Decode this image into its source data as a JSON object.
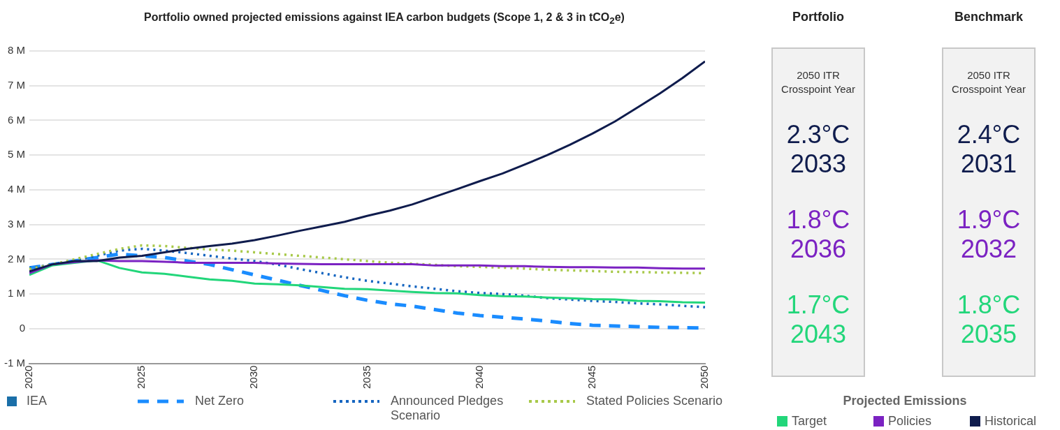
{
  "chart_data": [
    {
      "type": "line",
      "title": "Portfolio owned projected emissions against IEA carbon budgets (Scope 1, 2 & 3 in tCO$_{2}$e)",
      "legend_title": "IEA",
      "annotations": [
        "Projected Emissions"
      ],
      "x": [
        2020,
        2021,
        2022,
        2023,
        2024,
        2025,
        2026,
        2027,
        2028,
        2029,
        2030,
        2031,
        2032,
        2033,
        2034,
        2035,
        2036,
        2037,
        2038,
        2039,
        2040,
        2041,
        2042,
        2043,
        2044,
        2045,
        2046,
        2047,
        2048,
        2049,
        2050
      ],
      "xlim": [
        2020,
        2050
      ],
      "xticks": [
        2020,
        2025,
        2030,
        2035,
        2040,
        2045,
        2050
      ],
      "ylim": [
        -1,
        8
      ],
      "yticks": [
        {
          "value": -1,
          "label": "-1 M"
        },
        {
          "value": 0,
          "label": "0"
        },
        {
          "value": 1,
          "label": "1 M"
        },
        {
          "value": 2,
          "label": "2 M"
        },
        {
          "value": 3,
          "label": "3 M"
        },
        {
          "value": 4,
          "label": "4 M"
        },
        {
          "value": 5,
          "label": "5 M"
        },
        {
          "value": 6,
          "label": "6 M"
        },
        {
          "value": 7,
          "label": "7 M"
        },
        {
          "value": 8,
          "label": "8 M"
        }
      ],
      "grid": "y",
      "legend": "bottom",
      "marker": "none",
      "series": [
        {
          "name": "Net Zero",
          "color": "#1a8cff",
          "line_style": "dashed",
          "values": [
            1.75,
            1.85,
            1.95,
            2.05,
            2.15,
            2.1,
            2.05,
            1.95,
            1.85,
            1.7,
            1.55,
            1.4,
            1.25,
            1.1,
            0.95,
            0.82,
            0.72,
            0.65,
            0.55,
            0.45,
            0.38,
            0.33,
            0.28,
            0.22,
            0.15,
            0.1,
            0.08,
            0.06,
            0.04,
            0.03,
            0.02
          ]
        },
        {
          "name": "Announced Pledges Scenario",
          "color": "#1565c0",
          "line_style": "dotted",
          "values": [
            1.75,
            1.85,
            1.95,
            2.1,
            2.25,
            2.3,
            2.25,
            2.18,
            2.1,
            2.02,
            1.95,
            1.85,
            1.72,
            1.6,
            1.48,
            1.38,
            1.3,
            1.22,
            1.15,
            1.08,
            1.03,
            1.0,
            0.95,
            0.88,
            0.84,
            0.8,
            0.77,
            0.73,
            0.7,
            0.66,
            0.62
          ]
        },
        {
          "name": "Stated Policies Scenario",
          "color": "#a8c94a",
          "line_style": "dotted",
          "values": [
            1.72,
            1.85,
            2.0,
            2.15,
            2.3,
            2.4,
            2.38,
            2.33,
            2.28,
            2.25,
            2.2,
            2.15,
            2.1,
            2.05,
            2.0,
            1.95,
            1.9,
            1.87,
            1.84,
            1.8,
            1.78,
            1.76,
            1.73,
            1.7,
            1.68,
            1.66,
            1.64,
            1.63,
            1.62,
            1.61,
            1.6
          ]
        },
        {
          "name": "Target",
          "color": "#22d67a",
          "line_style": "solid",
          "values": [
            1.55,
            1.82,
            1.9,
            1.97,
            1.75,
            1.62,
            1.58,
            1.5,
            1.42,
            1.38,
            1.3,
            1.28,
            1.25,
            1.2,
            1.15,
            1.14,
            1.1,
            1.06,
            1.03,
            1.02,
            0.97,
            0.94,
            0.93,
            0.9,
            0.88,
            0.85,
            0.84,
            0.8,
            0.79,
            0.76,
            0.75
          ]
        },
        {
          "name": "Policies",
          "color": "#7b22c2",
          "line_style": "solid",
          "values": [
            1.6,
            1.85,
            1.92,
            1.97,
            1.95,
            1.95,
            1.93,
            1.9,
            1.9,
            1.9,
            1.9,
            1.88,
            1.87,
            1.86,
            1.86,
            1.86,
            1.86,
            1.86,
            1.82,
            1.82,
            1.82,
            1.8,
            1.8,
            1.78,
            1.77,
            1.77,
            1.76,
            1.76,
            1.74,
            1.73,
            1.73
          ]
        },
        {
          "name": "Historical",
          "color": "#0f1c4d",
          "line_style": "solid",
          "values": [
            1.65,
            1.85,
            1.95,
            1.95,
            2.05,
            2.1,
            2.2,
            2.3,
            2.38,
            2.45,
            2.55,
            2.68,
            2.82,
            2.95,
            3.08,
            3.25,
            3.4,
            3.58,
            3.8,
            4.02,
            4.25,
            4.47,
            4.73,
            5.0,
            5.3,
            5.62,
            5.97,
            6.37,
            6.78,
            7.22,
            7.7
          ]
        }
      ]
    },
    {
      "type": "other",
      "title": "Portfolio",
      "subtitle": "2050 ITR Crosspoint Year",
      "annotations": [
        "2.3°C",
        "2033",
        "1.8°C",
        "2036",
        "1.7°C",
        "2043"
      ],
      "colors": [
        "#0f1c4d",
        "#0f1c4d",
        "#7b22c2",
        "#7b22c2",
        "#22d67a",
        "#22d67a"
      ]
    },
    {
      "type": "other",
      "title": "Benchmark",
      "subtitle": "2050 ITR Crosspoint Year",
      "annotations": [
        "2.4°C",
        "2031",
        "1.9°C",
        "2032",
        "1.8°C",
        "2035"
      ],
      "colors": [
        "#0f1c4d",
        "#0f1c4d",
        "#7b22c2",
        "#7b22c2",
        "#22d67a",
        "#22d67a"
      ]
    }
  ]
}
